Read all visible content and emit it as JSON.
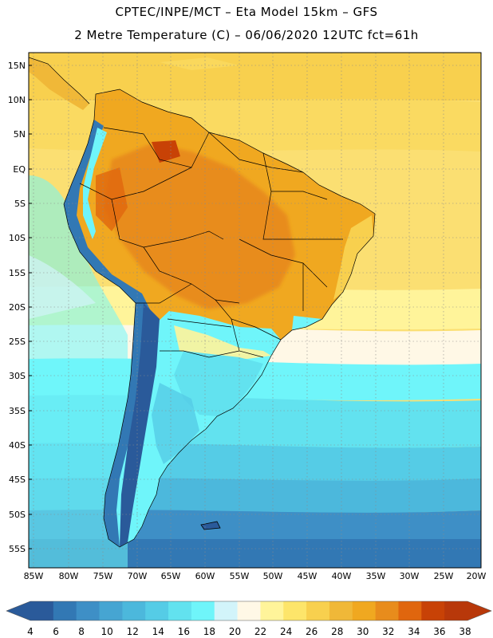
{
  "title": {
    "line1": "CPTEC/INPE/MCT –  Eta Model 15km – GFS",
    "line2": "2 Metre Temperature (C) – 06/06/2020 12UTC fct=61h"
  },
  "map": {
    "lat_labels": [
      "15N",
      "10N",
      "5N",
      "EQ",
      "5S",
      "10S",
      "15S",
      "20S",
      "25S",
      "30S",
      "35S",
      "40S",
      "45S",
      "50S",
      "55S"
    ],
    "lon_labels": [
      "85W",
      "80W",
      "75W",
      "70W",
      "65W",
      "60W",
      "55W",
      "50W",
      "45W",
      "40W",
      "35W",
      "30W",
      "25W",
      "20W"
    ]
  },
  "legend": {
    "values": [
      "4",
      "6",
      "8",
      "10",
      "12",
      "14",
      "16",
      "18",
      "20",
      "22",
      "24",
      "26",
      "28",
      "30",
      "32",
      "34",
      "36",
      "38"
    ],
    "colors": [
      "#2a5a9a",
      "#3278b4",
      "#3e8fc6",
      "#46a5d2",
      "#4cb8dc",
      "#55cce6",
      "#62e2ef",
      "#6ff5fa",
      "#d2f4fa",
      "#fff8e6",
      "#fff49a",
      "#fde56a",
      "#f8d04e",
      "#f0b838",
      "#f0a820",
      "#e88c1c",
      "#e0660e",
      "#c84206",
      "#b8380a"
    ],
    "low_arrow_color": "#2a5a9a",
    "high_arrow_color": "#b8380a"
  }
}
